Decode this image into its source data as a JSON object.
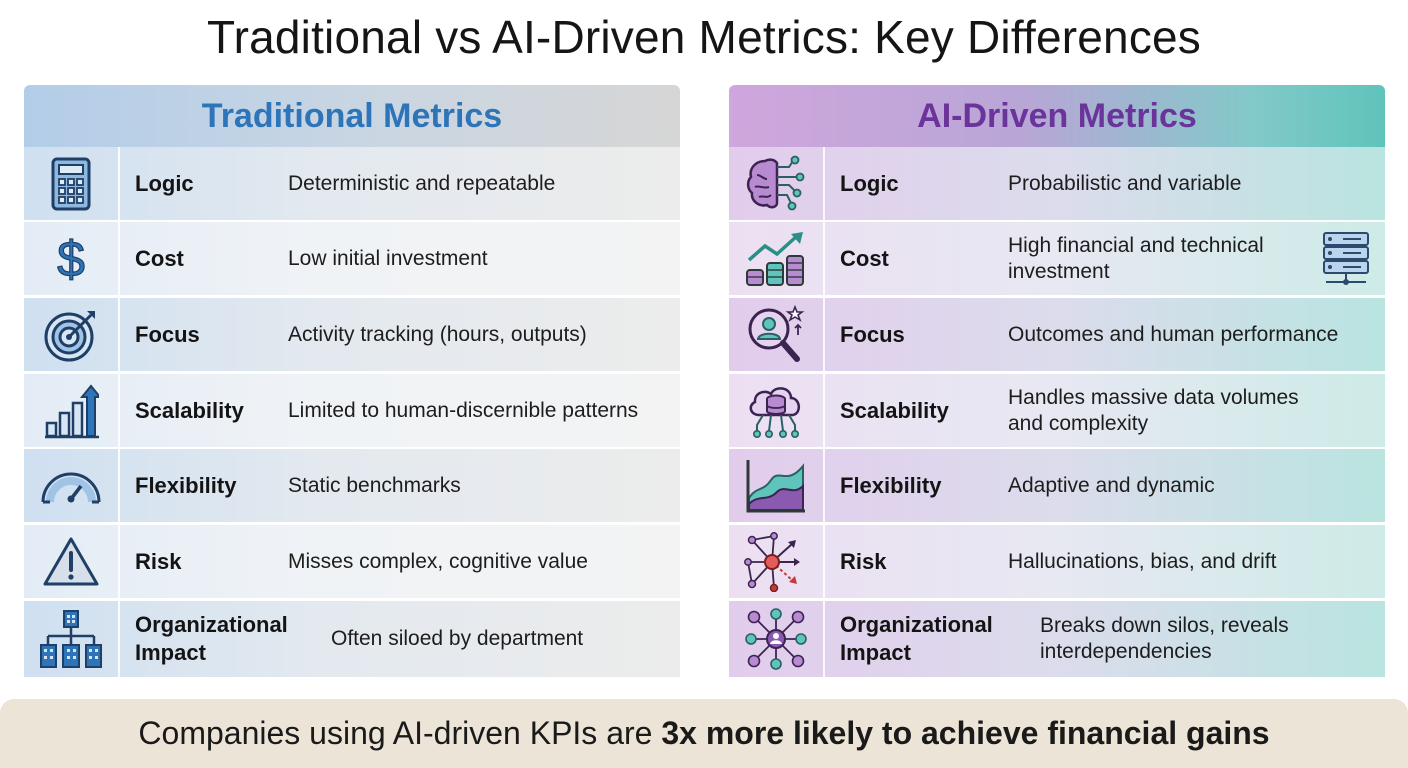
{
  "title": "Traditional vs AI-Driven Metrics: Key Differences",
  "left_panel": {
    "header": "Traditional Metrics",
    "rows": [
      {
        "label": "Logic",
        "value": "Deterministic and repeatable",
        "icon": "calculator-icon"
      },
      {
        "label": "Cost",
        "value": "Low initial investment",
        "icon": "dollar-icon"
      },
      {
        "label": "Focus",
        "value": "Activity tracking (hours, outputs)",
        "icon": "target-icon"
      },
      {
        "label": "Scalability",
        "value": "Limited to human-discernible patterns",
        "icon": "bar-growth-icon"
      },
      {
        "label": "Flexibility",
        "value": "Static benchmarks",
        "icon": "gauge-icon"
      },
      {
        "label": "Risk",
        "value": "Misses complex, cognitive value",
        "icon": "warning-icon"
      },
      {
        "label": "Organizational Impact",
        "value": "Often siloed by department",
        "icon": "org-chart-icon"
      }
    ]
  },
  "right_panel": {
    "header": "AI-Driven Metrics",
    "rows": [
      {
        "label": "Logic",
        "value": "Probabilistic and variable",
        "icon": "brain-circuit-icon"
      },
      {
        "label": "Cost",
        "value": "High financial and technical investment",
        "icon": "coins-growth-icon"
      },
      {
        "label": "Focus",
        "value": "Outcomes and human performance",
        "icon": "person-search-icon"
      },
      {
        "label": "Scalability",
        "value": "Handles massive data volumes and complexity",
        "icon": "cloud-database-icon"
      },
      {
        "label": "Flexibility",
        "value": "Adaptive and dynamic",
        "icon": "area-chart-icon"
      },
      {
        "label": "Risk",
        "value": "Hallucinations, bias, and drift",
        "icon": "network-risk-icon"
      },
      {
        "label": "Organizational Impact",
        "value": "Breaks down silos, reveals interdependencies",
        "icon": "people-network-icon"
      }
    ],
    "extra_icon": "server-rack-icon"
  },
  "footer": {
    "prefix": "Companies using AI-driven KPIs are ",
    "highlight": "3x more likely to achieve financial gains"
  },
  "colors": {
    "traditional_accent": "#2e74b8",
    "ai_accent": "#6b349a",
    "teal_accent": "#3fb8ad",
    "footer_bg": "#ece4d6"
  }
}
